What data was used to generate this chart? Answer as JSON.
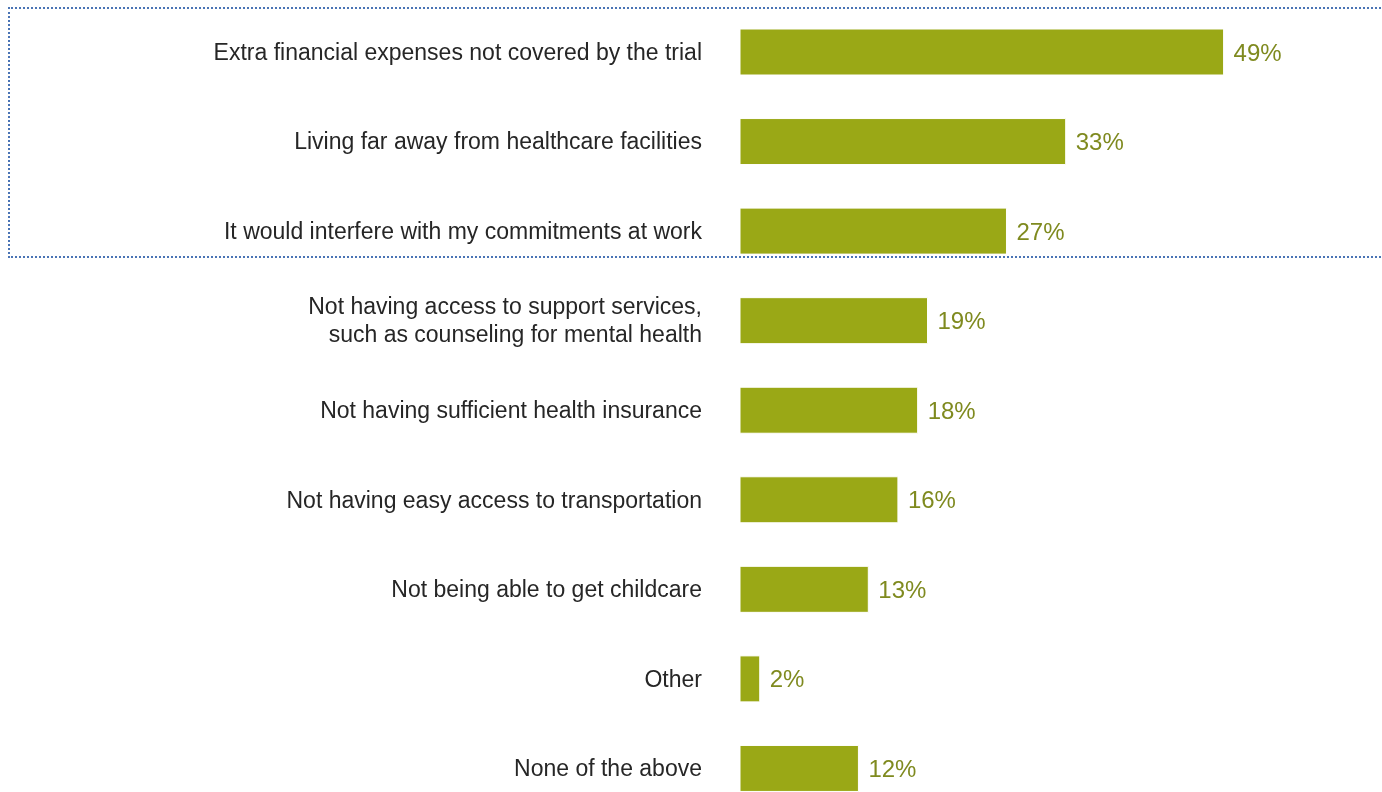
{
  "chart_data": {
    "type": "bar",
    "orientation": "horizontal",
    "categories": [
      "Extra financial expenses not covered by the trial",
      "Living far away from healthcare facilities",
      "It would interfere with my commitments at work",
      "Not having access to support services, such as counseling for mental health",
      "Not having sufficient health insurance",
      "Not having easy access to transportation",
      "Not being able to get childcare",
      "Other",
      "None of the above"
    ],
    "values": [
      49,
      33,
      27,
      19,
      18,
      16,
      13,
      2,
      12
    ],
    "value_labels": [
      "49%",
      "33%",
      "27%",
      "19%",
      "18%",
      "16%",
      "13%",
      "2%",
      "12%"
    ],
    "color": "#9aa816"
  }
}
